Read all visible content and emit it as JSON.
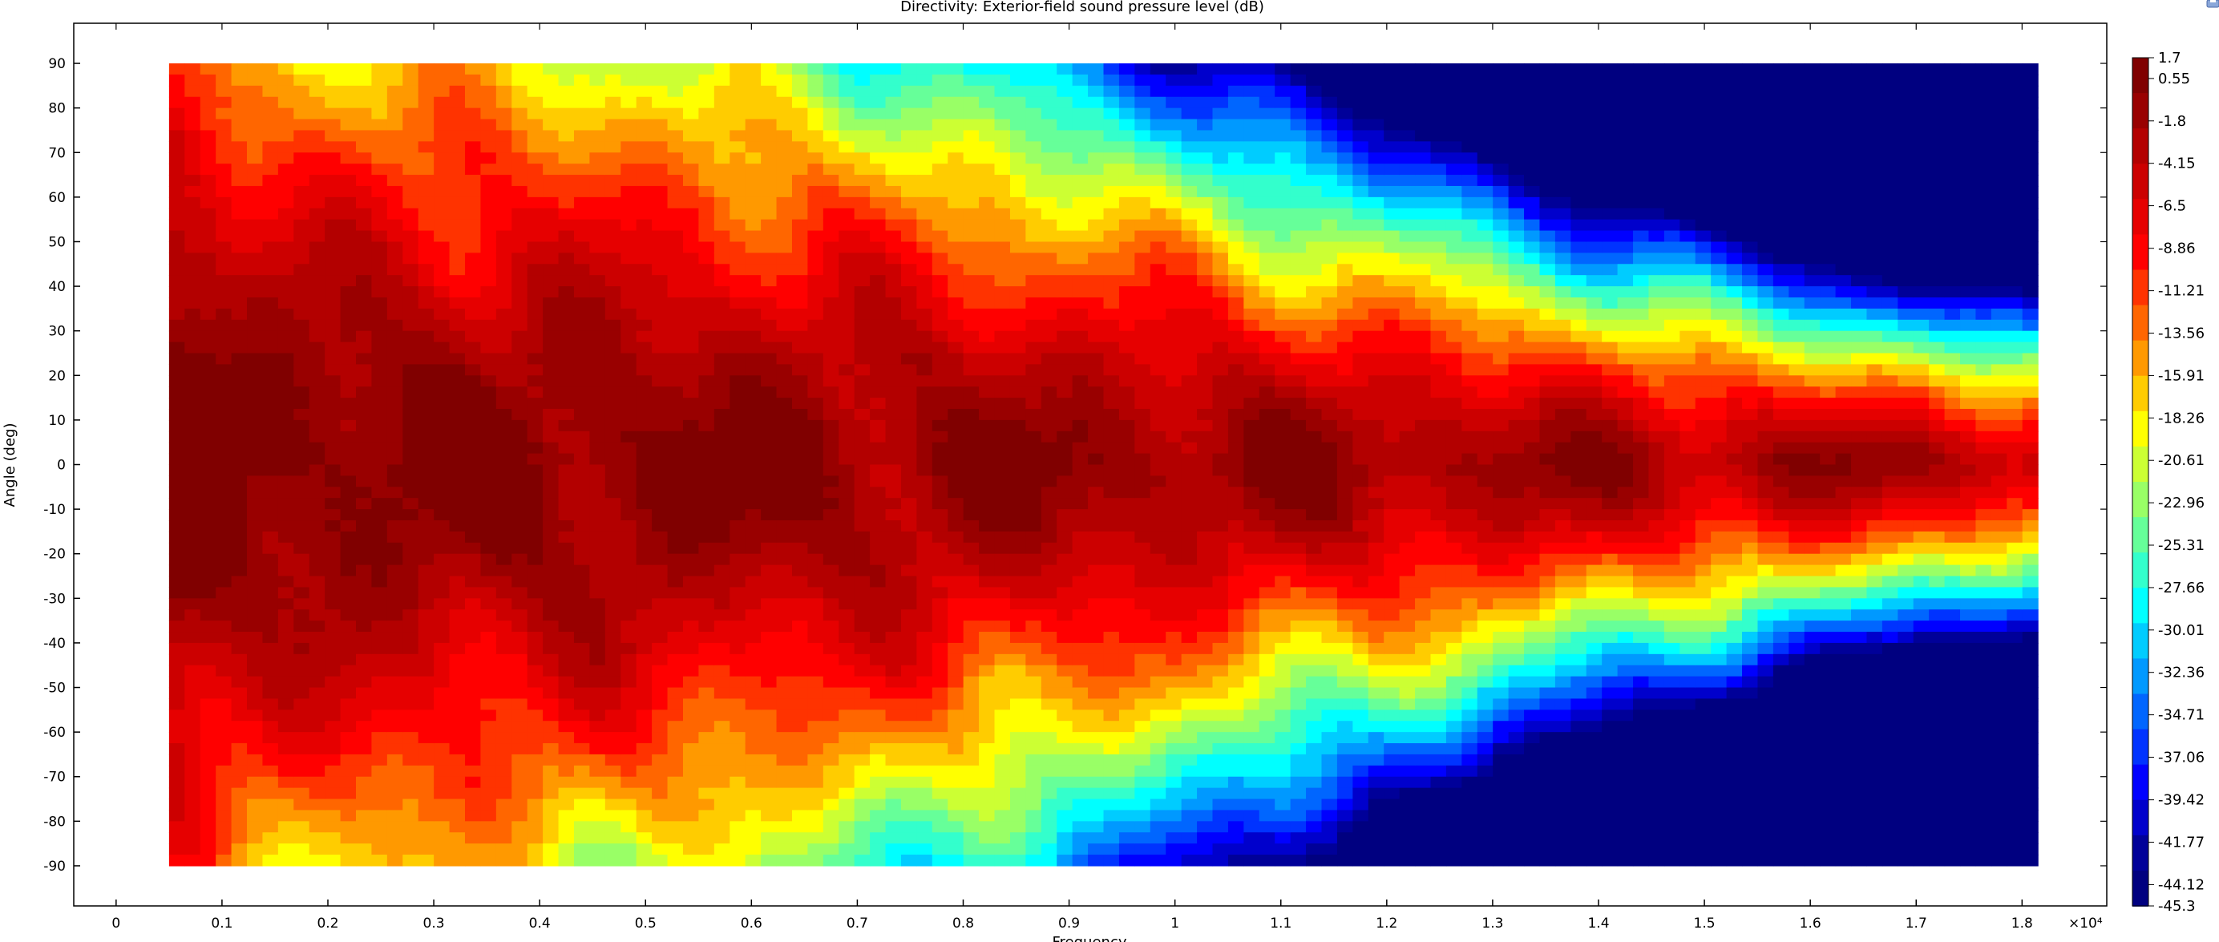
{
  "window": {
    "title": "Directivity: Exterior-field sound pressure level (dB)"
  },
  "chart_data": {
    "type": "heatmap",
    "title": "Directivity: Exterior-field sound pressure level (dB)",
    "xlabel": "Frequency",
    "ylabel": "Angle (deg)",
    "x_ticks": [
      0,
      0.1,
      0.2,
      0.3,
      0.4,
      0.5,
      0.6,
      0.7,
      0.8,
      0.9,
      1,
      1.1,
      1.2,
      1.3,
      1.4,
      1.5,
      1.6,
      1.7,
      1.8
    ],
    "x_tick_labels": [
      "0",
      "0.1",
      "0.2",
      "0.3",
      "0.4",
      "0.5",
      "0.6",
      "0.7",
      "0.8",
      "0.9",
      "1",
      "1.1",
      "1.2",
      "1.3",
      "1.4",
      "1.5",
      "1.6",
      "1.7",
      "1.8"
    ],
    "x_multiplier_label": "×10⁴",
    "x_range": [
      -0.04,
      1.88
    ],
    "y_ticks": [
      90,
      80,
      70,
      60,
      50,
      40,
      30,
      20,
      10,
      0,
      -10,
      -20,
      -30,
      -40,
      -50,
      -60,
      -70,
      -80,
      -90
    ],
    "y_tick_labels": [
      "90",
      "80",
      "70",
      "60",
      "50",
      "40",
      "30",
      "20",
      "10",
      "0",
      "-10",
      "-20",
      "-30",
      "-40",
      "-50",
      "-60",
      "-70",
      "-80",
      "-90"
    ],
    "y_range": [
      -99,
      99
    ],
    "data_x_range": [
      0.05,
      1.815
    ],
    "data_y_range": [
      -90,
      90
    ],
    "grid": false,
    "color_scale": {
      "type": "jet",
      "min": -45.3,
      "max": 1.7,
      "tick_values": [
        1.7,
        0.55,
        -1.8,
        -4.15,
        -6.5,
        -8.86,
        -11.21,
        -13.56,
        -15.91,
        -18.26,
        -20.61,
        -22.96,
        -25.31,
        -27.66,
        -30.01,
        -32.36,
        -34.71,
        -37.06,
        -39.42,
        -41.77,
        -44.12,
        -45.3
      ],
      "tick_labels": [
        "1.7",
        "0.55",
        "-1.8",
        "-4.15",
        "-6.5",
        "-8.86",
        "-11.21",
        "-13.56",
        "-15.91",
        "-18.26",
        "-20.61",
        "-22.96",
        "-25.31",
        "-27.66",
        "-30.01",
        "-32.36",
        "-34.71",
        "-37.06",
        "-39.42",
        "-41.77",
        "-44.12",
        "-45.3"
      ],
      "level_colors": [
        "#800000",
        "#990000",
        "#b30000",
        "#cc0000",
        "#e60000",
        "#ff0000",
        "#ff3300",
        "#ff6600",
        "#ff9900",
        "#ffcc00",
        "#ffff00",
        "#ccff33",
        "#99ff66",
        "#66ff99",
        "#33ffcc",
        "#00ffff",
        "#00ccff",
        "#0099ff",
        "#0066ff",
        "#0033ff",
        "#0000ff",
        "#0000cc",
        "#000099",
        "#000080"
      ],
      "legend_placement": "right"
    },
    "series": [
      {
        "name": "",
        "frequency_samples": [
          0.05,
          0.1,
          0.15,
          0.2,
          0.25,
          0.3,
          0.35,
          0.4,
          0.5,
          0.6,
          0.7,
          0.8,
          0.9,
          1.0,
          1.1,
          1.2,
          1.3,
          1.4,
          1.5,
          1.6,
          1.7,
          1.8
        ],
        "angle_samples": [
          90,
          80,
          70,
          60,
          50,
          40,
          30,
          20,
          10,
          0,
          -10,
          -20,
          -30,
          -40,
          -50,
          -60,
          -70,
          -80,
          -90
        ]
      }
    ]
  },
  "ui": {
    "corner_icon": "save-icon"
  }
}
